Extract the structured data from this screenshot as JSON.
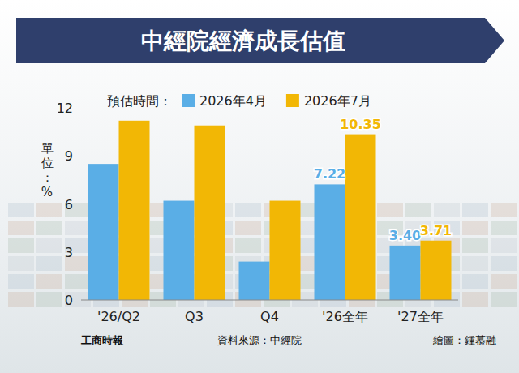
{
  "chart_data": {
    "type": "bar",
    "title": "中經院經濟成長估值",
    "legend_title": "預估時間：",
    "y_label": "單位：%",
    "categories": [
      "'26/Q2",
      "Q3",
      "Q4",
      "'26全年",
      "'27全年"
    ],
    "series": [
      {
        "name": "2026年4月",
        "color": "#5aaee6",
        "values": [
          8.5,
          6.2,
          2.4,
          7.22,
          3.4
        ],
        "value_labels": [
          null,
          null,
          null,
          "7.22",
          "3.40"
        ]
      },
      {
        "name": "2026年7月",
        "color": "#f2b705",
        "values": [
          11.2,
          10.9,
          6.2,
          10.35,
          3.71
        ],
        "value_labels": [
          null,
          null,
          null,
          "10.35",
          "3.71"
        ]
      }
    ],
    "ylim": [
      0,
      12
    ],
    "yticks": [
      0,
      3,
      6,
      9,
      12
    ],
    "grid": false,
    "legend": "top",
    "data_labels": true,
    "source": "資料來源：中經院",
    "publisher": "工商時報",
    "credit": "繪圖：鍾慕融"
  }
}
